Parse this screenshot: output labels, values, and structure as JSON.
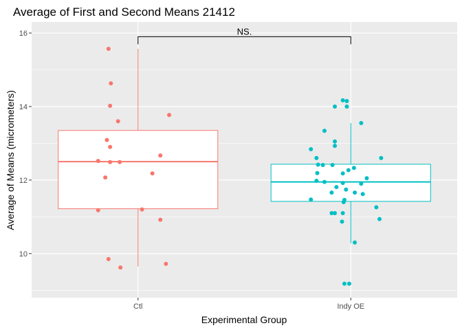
{
  "chart_data": {
    "type": "box",
    "title": "Average of First and Second Means 21412",
    "xlabel": "Experimental Group",
    "ylabel": "Average of Means (micrometers)",
    "categories": [
      "Ctl",
      "Indy OE"
    ],
    "ylim": [
      8.8,
      16.3
    ],
    "yticks": [
      10,
      12,
      14,
      16
    ],
    "grid": true,
    "legend": "none",
    "significance": {
      "groups": [
        "Ctl",
        "Indy OE"
      ],
      "label": "NS.",
      "y": 15.9
    },
    "series": [
      {
        "name": "Ctl",
        "color": "#F8766D",
        "box": {
          "min": 9.65,
          "q1": 11.22,
          "median": 12.5,
          "q3": 13.35,
          "max": 15.57
        },
        "points": [
          {
            "x": -0.37,
            "y": 15.57
          },
          {
            "x": -0.34,
            "y": 14.63
          },
          {
            "x": -0.35,
            "y": 14.02
          },
          {
            "x": -0.25,
            "y": 13.6
          },
          {
            "x": 0.39,
            "y": 13.77
          },
          {
            "x": -0.39,
            "y": 13.09
          },
          {
            "x": -0.35,
            "y": 12.9
          },
          {
            "x": 0.28,
            "y": 12.67
          },
          {
            "x": -0.5,
            "y": 12.52
          },
          {
            "x": -0.35,
            "y": 12.49
          },
          {
            "x": -0.23,
            "y": 12.49
          },
          {
            "x": 0.18,
            "y": 12.18
          },
          {
            "x": -0.41,
            "y": 12.07
          },
          {
            "x": -0.5,
            "y": 11.18
          },
          {
            "x": 0.05,
            "y": 11.2
          },
          {
            "x": 0.28,
            "y": 10.92
          },
          {
            "x": -0.37,
            "y": 9.85
          },
          {
            "x": 0.35,
            "y": 9.72
          },
          {
            "x": -0.22,
            "y": 9.62
          }
        ]
      },
      {
        "name": "Indy OE",
        "color": "#00BFC4",
        "box": {
          "min": 10.28,
          "q1": 11.42,
          "median": 11.95,
          "q3": 12.43,
          "max": 13.55
        },
        "points": [
          {
            "x": -0.1,
            "y": 14.17
          },
          {
            "x": -0.05,
            "y": 14.15
          },
          {
            "x": -0.2,
            "y": 14.0
          },
          {
            "x": -0.05,
            "y": 14.0
          },
          {
            "x": 0.13,
            "y": 13.55
          },
          {
            "x": -0.33,
            "y": 13.34
          },
          {
            "x": -0.2,
            "y": 13.05
          },
          {
            "x": -0.2,
            "y": 12.93
          },
          {
            "x": -0.5,
            "y": 12.84
          },
          {
            "x": -0.43,
            "y": 12.6
          },
          {
            "x": 0.38,
            "y": 12.6
          },
          {
            "x": -0.41,
            "y": 12.42
          },
          {
            "x": -0.35,
            "y": 12.41
          },
          {
            "x": -0.23,
            "y": 12.41
          },
          {
            "x": 0.04,
            "y": 12.33
          },
          {
            "x": -0.03,
            "y": 12.27
          },
          {
            "x": -0.42,
            "y": 12.19
          },
          {
            "x": -0.1,
            "y": 12.18
          },
          {
            "x": 0.2,
            "y": 12.05
          },
          {
            "x": -0.33,
            "y": 11.95
          },
          {
            "x": -0.43,
            "y": 11.98
          },
          {
            "x": -0.1,
            "y": 11.92
          },
          {
            "x": 0.13,
            "y": 11.9
          },
          {
            "x": -0.18,
            "y": 11.81
          },
          {
            "x": -0.06,
            "y": 11.74
          },
          {
            "x": 0.05,
            "y": 11.66
          },
          {
            "x": -0.24,
            "y": 11.66
          },
          {
            "x": 0.15,
            "y": 11.62
          },
          {
            "x": -0.5,
            "y": 11.47
          },
          {
            "x": -0.08,
            "y": 11.46
          },
          {
            "x": -0.09,
            "y": 11.4
          },
          {
            "x": 0.32,
            "y": 11.26
          },
          {
            "x": -0.24,
            "y": 11.1
          },
          {
            "x": -0.2,
            "y": 11.1
          },
          {
            "x": -0.1,
            "y": 11.1
          },
          {
            "x": -0.11,
            "y": 10.87
          },
          {
            "x": 0.36,
            "y": 10.94
          },
          {
            "x": 0.05,
            "y": 10.3
          },
          {
            "x": -0.08,
            "y": 9.18
          },
          {
            "x": -0.02,
            "y": 9.18
          }
        ]
      }
    ]
  }
}
